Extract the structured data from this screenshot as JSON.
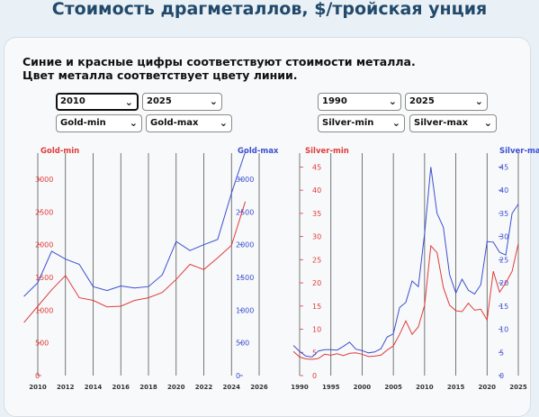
{
  "page": {
    "title": "Стоимость драгметаллов, $/тройская унция"
  },
  "description": {
    "line1": "Синие и красные цифры соответствуют стоимости металла.",
    "line2": "Цвет металла соответствует цвету линии."
  },
  "controls": {
    "gold": {
      "year_from": "2010",
      "year_to": "2025",
      "left_series": "Gold-min",
      "right_series": "Gold-max"
    },
    "silver": {
      "year_from": "1990",
      "year_to": "2025",
      "left_series": "Silver-min",
      "right_series": "Silver-max"
    }
  },
  "colors": {
    "min": "#e03c3c",
    "max": "#3d4fd1",
    "grid": "#555555"
  },
  "chart_data": [
    {
      "type": "line",
      "left_axis_label": "Gold-min",
      "right_axis_label": "Gold-max",
      "xlim": [
        2010,
        2026
      ],
      "ylim": [
        0,
        3400
      ],
      "x_ticks": [
        2010,
        2012,
        2014,
        2016,
        2018,
        2020,
        2022,
        2024,
        2026
      ],
      "y_ticks": [
        0,
        500,
        1000,
        1500,
        2000,
        2500,
        3000
      ],
      "x": [
        2009,
        2010,
        2011,
        2012,
        2013,
        2014,
        2015,
        2016,
        2017,
        2018,
        2019,
        2020,
        2021,
        2022,
        2023,
        2024,
        2025
      ],
      "series": [
        {
          "name": "Gold-min",
          "color": "min",
          "values": [
            810,
            1060,
            1310,
            1530,
            1190,
            1150,
            1050,
            1060,
            1150,
            1190,
            1270,
            1470,
            1700,
            1620,
            1800,
            1990,
            2660
          ]
        },
        {
          "name": "Gold-max",
          "color": "max",
          "values": [
            1210,
            1420,
            1900,
            1780,
            1700,
            1360,
            1300,
            1370,
            1340,
            1360,
            1540,
            2050,
            1910,
            2000,
            2080,
            2790,
            3420
          ]
        }
      ]
    },
    {
      "type": "line",
      "left_axis_label": "Silver-min",
      "right_axis_label": "Silver-max",
      "xlim": [
        1990,
        2025
      ],
      "ylim": [
        0,
        48
      ],
      "x_ticks": [
        1990,
        1995,
        2000,
        2005,
        2010,
        2015,
        2020,
        2025
      ],
      "y_ticks": [
        0,
        5,
        10,
        15,
        20,
        25,
        30,
        35,
        40,
        45
      ],
      "x": [
        1989,
        1990,
        1991,
        1992,
        1993,
        1994,
        1995,
        1996,
        1997,
        1998,
        1999,
        2000,
        2001,
        2002,
        2003,
        2004,
        2005,
        2006,
        2007,
        2008,
        2009,
        2010,
        2011,
        2012,
        2013,
        2014,
        2015,
        2016,
        2017,
        2018,
        2019,
        2020,
        2021,
        2022,
        2023,
        2024,
        2025
      ],
      "series": [
        {
          "name": "Silver-min",
          "color": "min",
          "values": [
            5.2,
            4.0,
            3.6,
            3.5,
            3.7,
            4.6,
            4.4,
            4.7,
            4.3,
            4.8,
            4.9,
            4.6,
            4.1,
            4.2,
            4.4,
            5.5,
            6.4,
            8.9,
            11.8,
            8.9,
            10.5,
            15.2,
            28.0,
            26.5,
            19.0,
            15.2,
            14.0,
            13.8,
            15.6,
            14.1,
            14.3,
            12.0,
            22.5,
            18.0,
            20.0,
            22.5,
            28.5
          ]
        },
        {
          "name": "Silver-max",
          "color": "max",
          "values": [
            6.5,
            5.2,
            4.2,
            4.0,
            5.3,
            5.6,
            5.6,
            5.5,
            6.3,
            7.2,
            5.7,
            5.4,
            4.9,
            5.1,
            5.8,
            8.3,
            9.0,
            14.7,
            15.8,
            20.4,
            19.2,
            30.7,
            45.0,
            35.0,
            32.0,
            21.8,
            17.8,
            20.8,
            18.4,
            17.6,
            19.6,
            28.9,
            28.8,
            26.6,
            26.0,
            35.0,
            37.0
          ]
        }
      ]
    }
  ]
}
